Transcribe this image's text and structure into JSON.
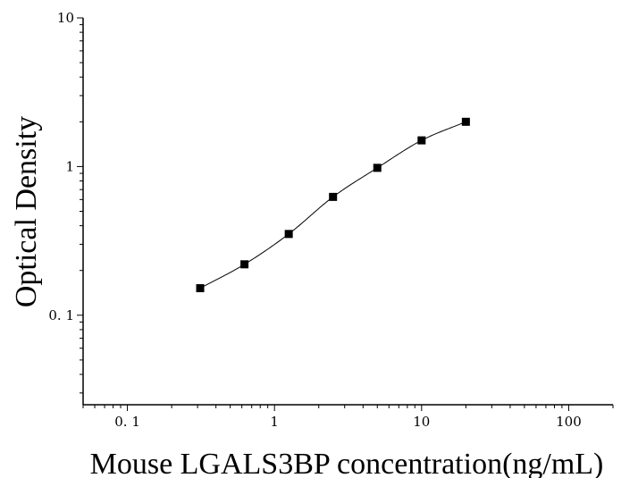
{
  "chart_data": {
    "type": "scatter",
    "xlabel": "Mouse LGALS3BP concentration(ng/mL)",
    "ylabel": "Optical Density",
    "x_scale": "log",
    "y_scale": "log",
    "xlim": [
      0.05,
      200
    ],
    "ylim": [
      0.025,
      10
    ],
    "x_ticks": [
      {
        "value": 0.1,
        "label": "0. 1"
      },
      {
        "value": 1,
        "label": "1"
      },
      {
        "value": 10,
        "label": "10"
      },
      {
        "value": 100,
        "label": "100"
      }
    ],
    "y_ticks": [
      {
        "value": 0.1,
        "label": "0. 1"
      },
      {
        "value": 1,
        "label": "1"
      },
      {
        "value": 10,
        "label": "10"
      }
    ],
    "series": [
      {
        "marker": "square",
        "color": "#000000",
        "x": [
          0.3125,
          0.625,
          1.25,
          2.5,
          5,
          10,
          20
        ],
        "y": [
          0.152,
          0.22,
          0.352,
          0.625,
          0.98,
          1.5,
          2.0
        ]
      }
    ],
    "fit_curve": true,
    "grid": false,
    "legend": "none"
  }
}
